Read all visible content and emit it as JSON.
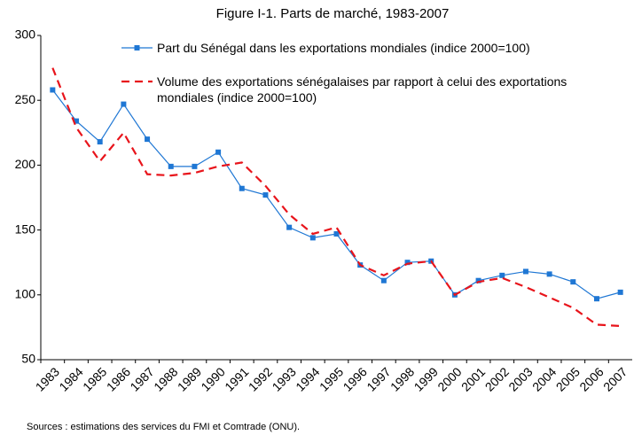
{
  "chart_data": {
    "type": "line",
    "title": "Figure I-1. Parts de marché, 1983-2007",
    "source": "Sources : estimations des services du FMI et Comtrade (ONU).",
    "categories": [
      "1983",
      "1984",
      "1985",
      "1986",
      "1987",
      "1988",
      "1989",
      "1990",
      "1991",
      "1992",
      "1993",
      "1994",
      "1995",
      "1996",
      "1997",
      "1998",
      "1999",
      "2000",
      "2001",
      "2002",
      "2003",
      "2004",
      "2005",
      "2006",
      "2007"
    ],
    "series": [
      {
        "name": "Part du Sénégal dans les exportations mondiales (indice 2000=100)",
        "color": "#1f77d4",
        "line_style": "solid",
        "marker": "square",
        "values": [
          258,
          234,
          218,
          247,
          220,
          199,
          199,
          210,
          182,
          177,
          152,
          144,
          147,
          123,
          111,
          125,
          126,
          100,
          111,
          115,
          118,
          116,
          110,
          97,
          102
        ]
      },
      {
        "name": "Volume des exportations sénégalaises par rapport à celui des exportations mondiales (indice 2000=100)",
        "color": "#e8141b",
        "line_style": "dashed",
        "marker": "none",
        "values": [
          275,
          229,
          203,
          225,
          193,
          192,
          194,
          199,
          202,
          184,
          162,
          147,
          152,
          123,
          115,
          124,
          126,
          100,
          110,
          113,
          106,
          98,
          90,
          77,
          76
        ]
      }
    ],
    "ylim": [
      50,
      300
    ],
    "yticks": [
      50,
      100,
      150,
      200,
      250,
      300
    ],
    "grid": false,
    "legend": "top-right"
  }
}
